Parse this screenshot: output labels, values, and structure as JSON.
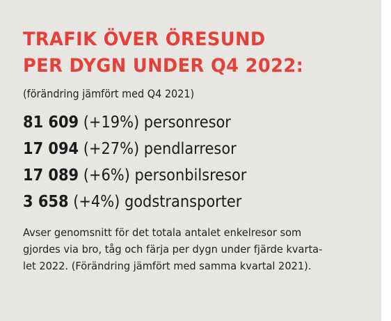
{
  "title": {
    "line1": "TRAFIK ÖVER ÖRESUND",
    "line2": "PER DYGN UNDER Q4 2022:"
  },
  "subtitle": "(förändring jämfört med Q4 2021)",
  "stats": [
    {
      "value": "81 609",
      "change": "(+19%)",
      "label": "personresor"
    },
    {
      "value": "17 094",
      "change": "(+27%)",
      "label": "pendlarresor"
    },
    {
      "value": "17 089",
      "change": "(+6%)",
      "label": "personbilsresor"
    },
    {
      "value": "3 658",
      "change": "(+4%)",
      "label": "godstransporter"
    }
  ],
  "note": {
    "line1": "Avser genomsnitt för det totala antalet enkelresor som",
    "line2": "gjordes via bro, tåg och färja per dygn under fjärde kvarta-",
    "line3": "let 2022. (Förändring jämfört med samma kvartal 2021)."
  },
  "colors": {
    "title": "#e4413a",
    "panel_background": "#e8e6e3",
    "text": "#1b1b1b"
  }
}
